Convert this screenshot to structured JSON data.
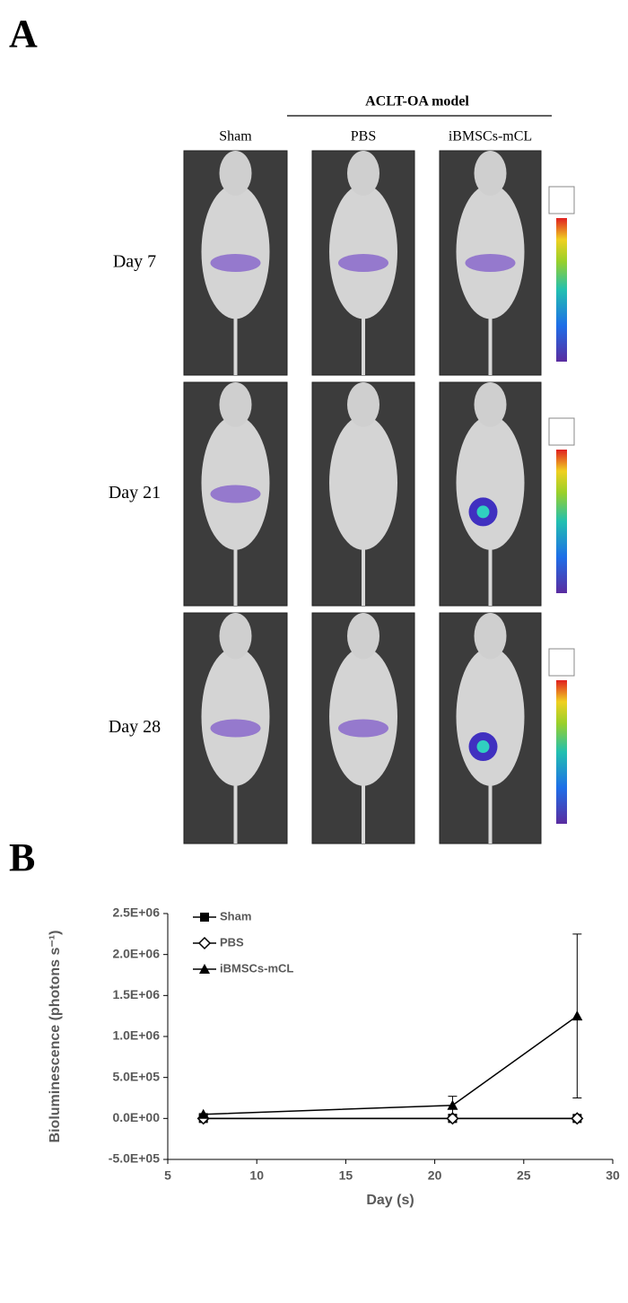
{
  "panel_a": {
    "label": "A",
    "group_label": "ACLT-OA model",
    "columns": [
      "Sham",
      "PBS",
      "iBMSCs-mCL"
    ],
    "rows": [
      "Day 7",
      "Day 21",
      "Day 28"
    ]
  },
  "chart_data": {
    "type": "line",
    "panel_label": "B",
    "xlabel": "Day (s)",
    "ylabel": "Bioluminescence (photons s⁻¹)",
    "x": [
      7,
      21,
      28
    ],
    "series": [
      {
        "name": "Sham",
        "color": "#000000",
        "marker": "square",
        "values": [
          0,
          0,
          0
        ]
      },
      {
        "name": "PBS",
        "color": "#000000",
        "marker": "open-diamond",
        "values": [
          0,
          0,
          0
        ]
      },
      {
        "name": "iBMSCs-mCL",
        "color": "#000000",
        "marker": "triangle",
        "values": [
          50000,
          160000,
          1250000
        ],
        "errors": [
          10000,
          110000,
          1000000
        ]
      }
    ],
    "xlim": [
      5,
      30
    ],
    "xticks": [
      5,
      10,
      15,
      20,
      25,
      30
    ],
    "ylim": [
      -500000,
      2500000
    ],
    "yticks": [
      {
        "value": -500000,
        "label": "-5.0E+05"
      },
      {
        "value": 0,
        "label": "0.0E+00"
      },
      {
        "value": 500000,
        "label": "5.0E+05"
      },
      {
        "value": 1000000,
        "label": "1.0E+06"
      },
      {
        "value": 1500000,
        "label": "1.5E+06"
      },
      {
        "value": 2000000,
        "label": "2.0E+06"
      },
      {
        "value": 2500000,
        "label": "2.5E+06"
      }
    ],
    "legend": "upper-left"
  }
}
